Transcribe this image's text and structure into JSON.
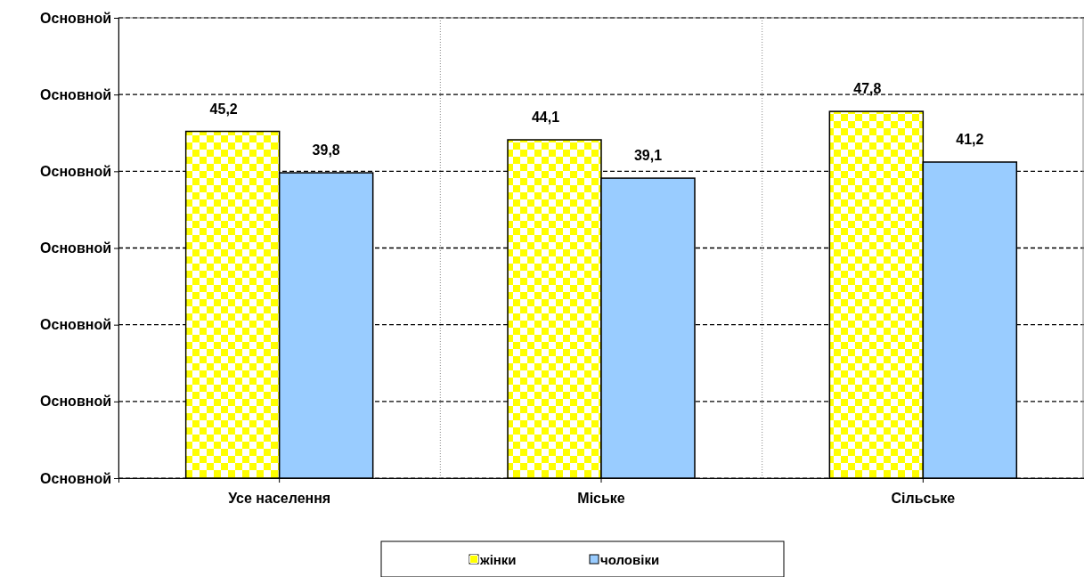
{
  "chart_data": {
    "type": "bar",
    "categories": [
      "Усе населення",
      "Міське",
      "Сільське"
    ],
    "series": [
      {
        "name": "жінки",
        "color": "#ffff00",
        "values": [
          45.2,
          44.1,
          47.8
        ],
        "value_labels": [
          "45,2",
          "44,1",
          "47,8"
        ]
      },
      {
        "name": "чоловіки",
        "color": "#99ccff",
        "values": [
          39.8,
          39.1,
          41.2
        ],
        "value_labels": [
          "39,8",
          "39,1",
          "41,2"
        ]
      }
    ],
    "ylim": [
      0,
      60
    ],
    "annotations": [
      "Основной",
      "Основной",
      "Основной",
      "Основной",
      "Основной",
      "Основной",
      "Основной"
    ],
    "grid": true,
    "legend": "bottom",
    "data_labels": true
  }
}
